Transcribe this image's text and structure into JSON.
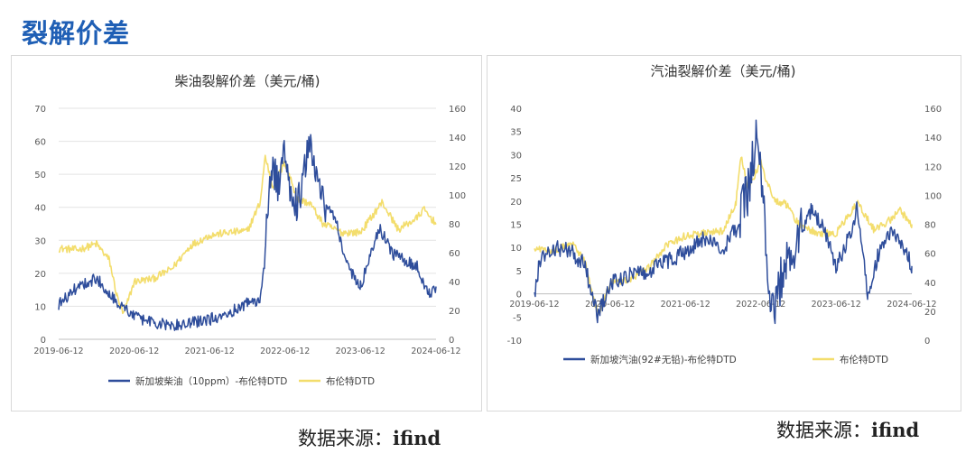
{
  "page": {
    "title": "裂解价差",
    "source_left": {
      "prefix": "数据来源：",
      "value": "ifind"
    },
    "source_right": {
      "prefix": "数据来源：",
      "value": "ifind"
    }
  },
  "colors": {
    "title": "#1f5fb5",
    "spread": "#2e4d9b",
    "brent": "#f3dd6c",
    "axis_text": "#595959",
    "grid": "#e3e3e3"
  },
  "chart_data": [
    {
      "type": "line",
      "title": "柴油裂解价差（美元/桶)",
      "x_ticks": [
        "2019-06-12",
        "2020-06-12",
        "2021-06-12",
        "2022-06-12",
        "2023-06-12",
        "2024-06-12"
      ],
      "y_left": {
        "ticks": [
          0,
          10,
          20,
          30,
          40,
          50,
          60,
          70
        ],
        "ylim": [
          0,
          70
        ]
      },
      "y_right": {
        "ticks": [
          0,
          20,
          40,
          60,
          80,
          100,
          120,
          140,
          160
        ],
        "ylim": [
          0,
          160
        ]
      },
      "grid": true,
      "legend_position": "bottom",
      "series": [
        {
          "name": "新加坡柴油（10ppm）-布伦特DTD",
          "axis": "left",
          "color": "#2e4d9b",
          "points": [
            [
              "2019-06-12",
              10.5
            ],
            [
              "2019-09-12",
              16
            ],
            [
              "2019-12-12",
              18.5
            ],
            [
              "2020-02-12",
              14
            ],
            [
              "2020-04-12",
              10
            ],
            [
              "2020-06-12",
              7
            ],
            [
              "2020-09-12",
              5
            ],
            [
              "2020-12-12",
              4
            ],
            [
              "2021-03-12",
              5
            ],
            [
              "2021-06-12",
              6
            ],
            [
              "2021-09-12",
              8
            ],
            [
              "2021-12-12",
              11
            ],
            [
              "2022-02-12",
              12
            ],
            [
              "2022-03-10",
              30
            ],
            [
              "2022-04-10",
              52
            ],
            [
              "2022-05-15",
              46
            ],
            [
              "2022-06-12",
              58
            ],
            [
              "2022-07-10",
              45
            ],
            [
              "2022-08-10",
              40
            ],
            [
              "2022-10-10",
              60
            ],
            [
              "2022-11-10",
              48
            ],
            [
              "2022-12-12",
              42
            ],
            [
              "2023-02-12",
              36
            ],
            [
              "2023-04-12",
              22
            ],
            [
              "2023-06-12",
              16
            ],
            [
              "2023-08-12",
              28
            ],
            [
              "2023-09-12",
              34
            ],
            [
              "2023-11-12",
              26
            ],
            [
              "2024-01-12",
              24
            ],
            [
              "2024-03-12",
              22
            ],
            [
              "2024-04-12",
              17
            ],
            [
              "2024-05-12",
              14
            ],
            [
              "2024-06-12",
              16
            ]
          ]
        },
        {
          "name": "布伦特DTD",
          "axis": "right",
          "color": "#f3dd6c",
          "points": [
            [
              "2019-06-12",
              63
            ],
            [
              "2019-09-12",
              62
            ],
            [
              "2019-12-12",
              66
            ],
            [
              "2020-02-12",
              55
            ],
            [
              "2020-03-20",
              30
            ],
            [
              "2020-04-21",
              17
            ],
            [
              "2020-06-12",
              40
            ],
            [
              "2020-09-12",
              42
            ],
            [
              "2020-12-12",
              49
            ],
            [
              "2021-03-12",
              65
            ],
            [
              "2021-06-12",
              72
            ],
            [
              "2021-09-12",
              74
            ],
            [
              "2021-12-12",
              75
            ],
            [
              "2022-02-12",
              95
            ],
            [
              "2022-03-08",
              127
            ],
            [
              "2022-04-12",
              106
            ],
            [
              "2022-06-12",
              122
            ],
            [
              "2022-08-12",
              97
            ],
            [
              "2022-10-12",
              94
            ],
            [
              "2022-12-12",
              80
            ],
            [
              "2023-03-12",
              74
            ],
            [
              "2023-06-12",
              74
            ],
            [
              "2023-09-25",
              95
            ],
            [
              "2023-12-12",
              76
            ],
            [
              "2024-03-12",
              84
            ],
            [
              "2024-04-12",
              90
            ],
            [
              "2024-06-12",
              80
            ]
          ]
        }
      ]
    },
    {
      "type": "line",
      "title": "汽油裂解价差（美元/桶)",
      "x_ticks": [
        "2019-06-12",
        "2020-06-12",
        "2021-06-12",
        "2022-06-12",
        "2023-06-12",
        "2024-06-12"
      ],
      "y_left": {
        "ticks": [
          -10,
          -5,
          0,
          5,
          10,
          15,
          20,
          25,
          30,
          35,
          40
        ],
        "ylim": [
          -10,
          40
        ]
      },
      "y_right": {
        "ticks": [
          0,
          20,
          40,
          60,
          80,
          100,
          120,
          140,
          160
        ],
        "ylim": [
          0,
          160
        ]
      },
      "grid": false,
      "legend_position": "bottom",
      "series": [
        {
          "name": "新加坡汽油(92#无铅)-布伦特DTD",
          "axis": "left",
          "color": "#2e4d9b",
          "points": [
            [
              "2019-06-12",
              0
            ],
            [
              "2019-07-12",
              8
            ],
            [
              "2019-09-12",
              10
            ],
            [
              "2019-12-12",
              9
            ],
            [
              "2020-02-12",
              6
            ],
            [
              "2020-04-12",
              -5
            ],
            [
              "2020-06-12",
              2
            ],
            [
              "2020-09-12",
              4
            ],
            [
              "2020-12-12",
              5
            ],
            [
              "2021-03-12",
              7
            ],
            [
              "2021-06-12",
              9
            ],
            [
              "2021-09-12",
              12
            ],
            [
              "2021-12-12",
              10
            ],
            [
              "2022-02-12",
              14
            ],
            [
              "2022-04-12",
              22
            ],
            [
              "2022-05-20",
              33
            ],
            [
              "2022-06-12",
              25
            ],
            [
              "2022-07-20",
              5
            ],
            [
              "2022-08-12",
              -5
            ],
            [
              "2022-10-12",
              8
            ],
            [
              "2022-12-12",
              12
            ],
            [
              "2023-02-12",
              18
            ],
            [
              "2023-04-12",
              14
            ],
            [
              "2023-06-12",
              6
            ],
            [
              "2023-08-12",
              12
            ],
            [
              "2023-09-20",
              18
            ],
            [
              "2023-11-12",
              0
            ],
            [
              "2024-01-12",
              10
            ],
            [
              "2024-03-12",
              14
            ],
            [
              "2024-04-12",
              12
            ],
            [
              "2024-06-12",
              6
            ]
          ]
        },
        {
          "name": "布伦特DTD",
          "axis": "right",
          "color": "#f3dd6c",
          "points": [
            [
              "2019-06-12",
              63
            ],
            [
              "2019-09-12",
              62
            ],
            [
              "2019-12-12",
              66
            ],
            [
              "2020-02-12",
              55
            ],
            [
              "2020-03-20",
              30
            ],
            [
              "2020-04-21",
              17
            ],
            [
              "2020-06-12",
              40
            ],
            [
              "2020-09-12",
              42
            ],
            [
              "2020-12-12",
              49
            ],
            [
              "2021-03-12",
              65
            ],
            [
              "2021-06-12",
              72
            ],
            [
              "2021-09-12",
              74
            ],
            [
              "2021-12-12",
              75
            ],
            [
              "2022-02-12",
              95
            ],
            [
              "2022-03-08",
              127
            ],
            [
              "2022-04-12",
              106
            ],
            [
              "2022-06-12",
              122
            ],
            [
              "2022-08-12",
              97
            ],
            [
              "2022-10-12",
              94
            ],
            [
              "2022-12-12",
              80
            ],
            [
              "2023-03-12",
              74
            ],
            [
              "2023-06-12",
              74
            ],
            [
              "2023-09-25",
              95
            ],
            [
              "2023-12-12",
              76
            ],
            [
              "2024-03-12",
              84
            ],
            [
              "2024-04-12",
              90
            ],
            [
              "2024-06-12",
              80
            ]
          ]
        }
      ]
    }
  ]
}
